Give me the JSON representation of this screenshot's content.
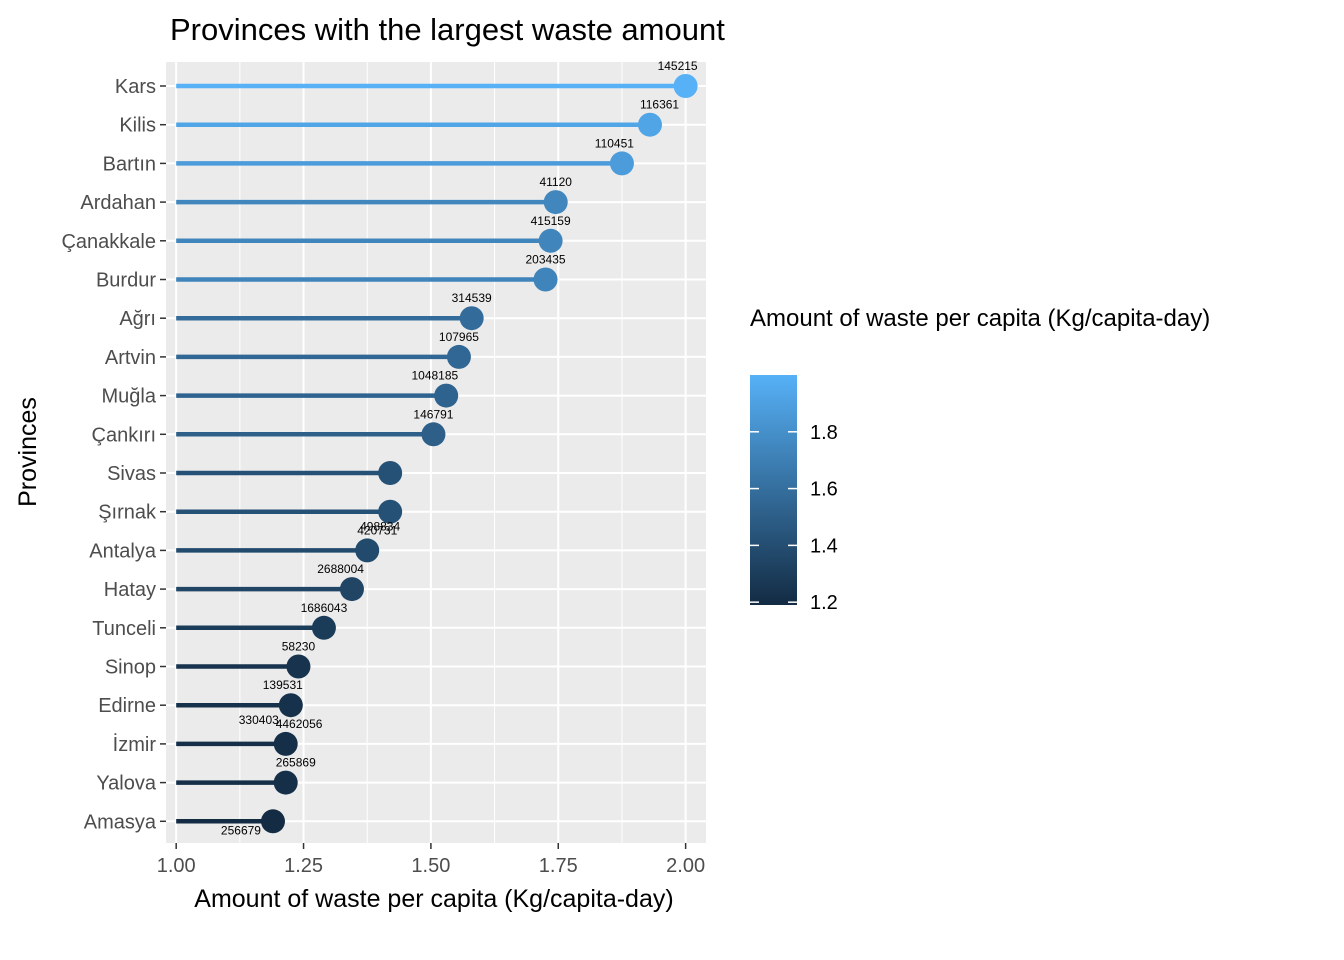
{
  "chart_data": {
    "type": "lollipop",
    "title": "Provinces with the largest waste amount",
    "xlabel": "Amount of waste per capita (Kg/capita-day)",
    "ylabel": "Provinces",
    "xlim": [
      0.98,
      2.04
    ],
    "xticks": [
      1.0,
      1.25,
      1.5,
      1.75,
      2.0
    ],
    "xtick_labels": [
      "1.00",
      "1.25",
      "1.50",
      "1.75",
      "2.00"
    ],
    "categories": [
      "Kars",
      "Kilis",
      "Bartın",
      "Ardahan",
      "Çanakkale",
      "Burdur",
      "Ağrı",
      "Artvin",
      "Muğla",
      "Çankırı",
      "Sivas",
      "Şırnak",
      "Antalya",
      "Hatay",
      "Tunceli",
      "Sinop",
      "Edirne",
      "İzmir",
      "Yalova",
      "Amasya"
    ],
    "values": [
      2.0,
      1.93,
      1.875,
      1.745,
      1.735,
      1.725,
      1.58,
      1.555,
      1.53,
      1.505,
      1.42,
      1.42,
      1.375,
      1.345,
      1.29,
      1.24,
      1.225,
      1.215,
      1.215,
      1.19
    ],
    "point_labels": [
      [
        "145215"
      ],
      [
        "116361"
      ],
      [
        "110451"
      ],
      [
        "41120"
      ],
      [
        "415159"
      ],
      [
        "203435"
      ],
      [
        "314539"
      ],
      [
        "107965"
      ],
      [
        "1048185"
      ],
      [
        "146791"
      ],
      [],
      [
        "498834"
      ],
      [
        "420731"
      ],
      [
        "2688004"
      ],
      [
        "1686043"
      ],
      [
        "58230"
      ],
      [
        "139531",
        "330403"
      ],
      [
        "4462056"
      ],
      [
        "265869"
      ],
      [
        "256679"
      ]
    ],
    "label_anchors": [
      "end",
      "start",
      "end",
      "middle",
      "middle",
      "middle",
      "middle",
      "middle",
      "end",
      "middle",
      "middle",
      "end",
      "start",
      "end",
      "middle",
      "middle",
      "end",
      "start",
      "start",
      "end"
    ],
    "legend": {
      "title": "Amount of waste per capita (Kg/capita-day)",
      "range": [
        1.19,
        2.0
      ],
      "ticks": [
        1.2,
        1.4,
        1.6,
        1.8
      ],
      "tick_labels": [
        "1.2",
        "1.4",
        "1.6",
        "1.8"
      ],
      "low_color": "#132B43",
      "high_color": "#56B1F7"
    },
    "panel_background": "#EBEBEB",
    "grid_color": "#FFFFFF"
  }
}
